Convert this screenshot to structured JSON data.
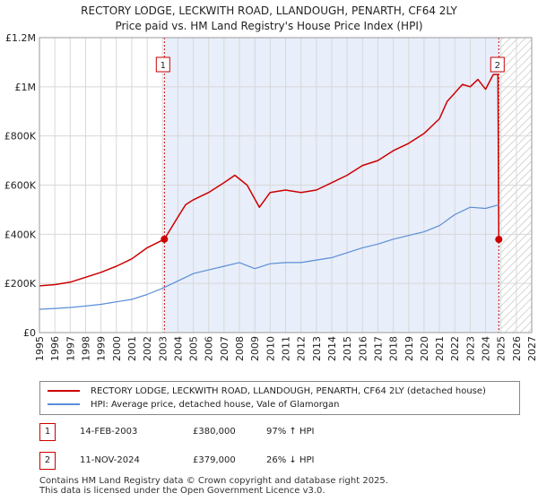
{
  "title_line1": "RECTORY LODGE, LECKWITH ROAD, LLANDOUGH, PENARTH, CF64 2LY",
  "title_line2": "Price paid vs. HM Land Registry's House Price Index (HPI)",
  "chart_data": {
    "type": "line",
    "xlim": [
      1995,
      2027
    ],
    "ylim": [
      0,
      1200000
    ],
    "x_ticks": [
      1995,
      1996,
      1997,
      1998,
      1999,
      2000,
      2001,
      2002,
      2003,
      2004,
      2005,
      2006,
      2007,
      2008,
      2009,
      2010,
      2011,
      2012,
      2013,
      2014,
      2015,
      2016,
      2017,
      2018,
      2019,
      2020,
      2021,
      2022,
      2023,
      2024,
      2025,
      2026,
      2027
    ],
    "y_ticks": [
      {
        "value": 0,
        "label": "£0"
      },
      {
        "value": 200000,
        "label": "£200K"
      },
      {
        "value": 400000,
        "label": "£400K"
      },
      {
        "value": 600000,
        "label": "£600K"
      },
      {
        "value": 800000,
        "label": "£800K"
      },
      {
        "value": 1000000,
        "label": "£1M"
      },
      {
        "value": 1200000,
        "label": "£1.2M"
      }
    ],
    "shaded_between": [
      2003.12,
      2024.86
    ],
    "hatched_from": 2024.86,
    "series": [
      {
        "name": "RECTORY LODGE, LECKWITH ROAD, LLANDOUGH, PENARTH, CF64 2LY (detached house)",
        "color": "#cc0000",
        "x": [
          1995,
          1996,
          1997,
          1998,
          1999,
          2000,
          2001,
          2002,
          2003.12,
          2004,
          2004.5,
          2005,
          2006,
          2007,
          2007.7,
          2008.5,
          2009.3,
          2010,
          2011,
          2012,
          2013,
          2014,
          2015,
          2016,
          2017,
          2018,
          2019,
          2020,
          2021,
          2021.5,
          2022.5,
          2023,
          2023.5,
          2024,
          2024.5,
          2024.8,
          2024.86
        ],
        "values": [
          190000,
          195000,
          205000,
          225000,
          245000,
          270000,
          300000,
          345000,
          380000,
          470000,
          520000,
          540000,
          570000,
          610000,
          640000,
          600000,
          510000,
          570000,
          580000,
          570000,
          580000,
          610000,
          640000,
          680000,
          700000,
          740000,
          770000,
          810000,
          870000,
          940000,
          1010000,
          1000000,
          1030000,
          990000,
          1050000,
          1050000,
          379000
        ]
      },
      {
        "name": "HPI: Average price, detached house, Vale of Glamorgan",
        "color": "#5b8ed6",
        "x": [
          1995,
          1996,
          1997,
          1998,
          1999,
          2000,
          2001,
          2002,
          2003,
          2004,
          2005,
          2006,
          2007,
          2008,
          2009,
          2010,
          2011,
          2012,
          2013,
          2014,
          2015,
          2016,
          2017,
          2018,
          2019,
          2020,
          2021,
          2022,
          2023,
          2024,
          2024.86
        ],
        "values": [
          95000,
          98000,
          102000,
          108000,
          115000,
          125000,
          135000,
          155000,
          180000,
          210000,
          240000,
          255000,
          270000,
          285000,
          260000,
          280000,
          285000,
          285000,
          295000,
          305000,
          325000,
          345000,
          360000,
          380000,
          395000,
          410000,
          435000,
          480000,
          510000,
          505000,
          520000
        ]
      }
    ],
    "markers": [
      {
        "label": "1",
        "x": 2003.12,
        "y": 380000
      },
      {
        "label": "2",
        "x": 2024.86,
        "y": 379000
      }
    ]
  },
  "legend": [
    {
      "label": "RECTORY LODGE, LECKWITH ROAD, LLANDOUGH, PENARTH, CF64 2LY (detached house)",
      "color": "#cc0000"
    },
    {
      "label": "HPI: Average price, detached house, Vale of Glamorgan",
      "color": "#5b8ed6"
    }
  ],
  "transactions": [
    {
      "num": "1",
      "date": "14-FEB-2003",
      "price": "£380,000",
      "hpi": "97% ↑ HPI"
    },
    {
      "num": "2",
      "date": "11-NOV-2024",
      "price": "£379,000",
      "hpi": "26% ↓ HPI"
    }
  ],
  "footer_line1": "Contains HM Land Registry data © Crown copyright and database right 2025.",
  "footer_line2": "This data is licensed under the Open Government Licence v3.0."
}
